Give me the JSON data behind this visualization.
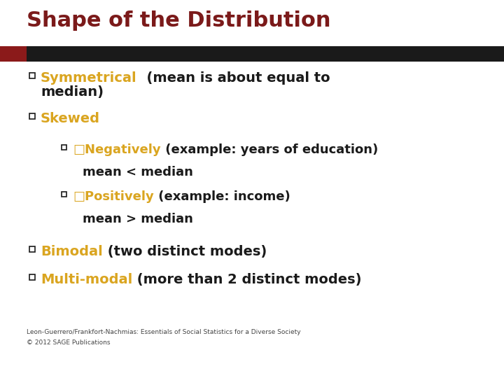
{
  "title": "Shape of the Distribution",
  "title_color": "#7B1A1A",
  "background_color": "#FFFFFF",
  "bar_color_dark": "#1A1A1A",
  "bar_color_red": "#8B1A1A",
  "bullet_color": "#DAA520",
  "black_color": "#1A1A1A",
  "gold_color": "#DAA520",
  "footer_text1": "Leon-Guerrero/Frankfort-Nachmias: Essentials of Social Statistics for a Diverse Society",
  "footer_text2": "© 2012 SAGE Publications",
  "title_fontsize": 22,
  "main_fontsize": 14,
  "sub_fontsize": 13,
  "footer_fontsize": 6.5
}
